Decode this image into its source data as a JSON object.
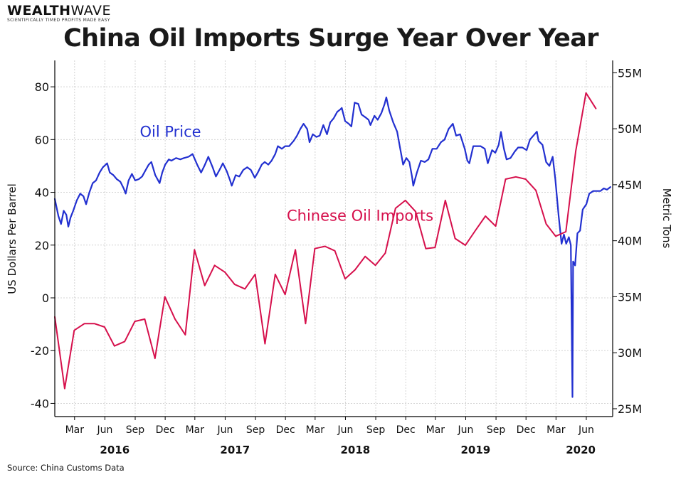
{
  "brand": {
    "name_bold": "WEALTH",
    "name_light": "WAVE",
    "tagline": "SCIENTIFICALLY TIMED PROFITS MADE EASY"
  },
  "source": "Source: China Customs Data",
  "colors": {
    "oil_price": "#2230d0",
    "imports": "#d6104c",
    "grid": "#d4d4d4",
    "axis": "#000000"
  },
  "chart_data": {
    "type": "line",
    "title": "China Oil Imports Surge Year Over Year",
    "left_axis": {
      "label": "US Dollars Per Barrel",
      "range": [
        -45,
        90
      ],
      "ticks": [
        80,
        60,
        40,
        20,
        0,
        -20,
        -40
      ],
      "tick_labels": [
        "80",
        "60",
        "40",
        "20",
        "0",
        "-20",
        "-40"
      ]
    },
    "right_axis": {
      "label": "Metric Tons",
      "range": [
        24.3,
        56.1
      ],
      "ticks": [
        55,
        50,
        45,
        40,
        35,
        30,
        25
      ],
      "tick_labels": [
        "55M",
        "50M",
        "45M",
        "40M",
        "35M",
        "30M",
        "25M"
      ]
    },
    "x_axis": {
      "range": [
        "2016-01-01",
        "2020-08-20"
      ],
      "month_ticks": [
        {
          "date": "2016-03-01",
          "label": "Mar"
        },
        {
          "date": "2016-06-01",
          "label": "Jun"
        },
        {
          "date": "2016-09-01",
          "label": "Sep"
        },
        {
          "date": "2016-12-01",
          "label": "Dec"
        },
        {
          "date": "2017-03-01",
          "label": "Mar"
        },
        {
          "date": "2017-06-01",
          "label": "Jun"
        },
        {
          "date": "2017-09-01",
          "label": "Sep"
        },
        {
          "date": "2017-12-01",
          "label": "Dec"
        },
        {
          "date": "2018-03-01",
          "label": "Mar"
        },
        {
          "date": "2018-06-01",
          "label": "Jun"
        },
        {
          "date": "2018-09-01",
          "label": "Sep"
        },
        {
          "date": "2018-12-01",
          "label": "Dec"
        },
        {
          "date": "2019-03-01",
          "label": "Mar"
        },
        {
          "date": "2019-06-01",
          "label": "Jun"
        },
        {
          "date": "2019-09-01",
          "label": "Sep"
        },
        {
          "date": "2019-12-01",
          "label": "Dec"
        },
        {
          "date": "2020-03-01",
          "label": "Mar"
        },
        {
          "date": "2020-06-01",
          "label": "Jun"
        }
      ],
      "year_labels": [
        {
          "date": "2016-07-01",
          "label": "2016"
        },
        {
          "date": "2017-07-01",
          "label": "2017"
        },
        {
          "date": "2018-07-01",
          "label": "2018"
        },
        {
          "date": "2019-07-01",
          "label": "2019"
        },
        {
          "date": "2020-05-15",
          "label": "2020"
        }
      ]
    },
    "grid": true,
    "series": [
      {
        "name": "Oil Price",
        "axis": "left",
        "color": "#2230d0",
        "label_position": {
          "date": "2016-09-15",
          "value": 61
        },
        "points": [
          [
            "2016-01-01",
            37.5
          ],
          [
            "2016-01-12",
            31.0
          ],
          [
            "2016-01-20",
            28.0
          ],
          [
            "2016-01-28",
            33.0
          ],
          [
            "2016-02-05",
            31.5
          ],
          [
            "2016-02-11",
            27.0
          ],
          [
            "2016-02-18",
            30.5
          ],
          [
            "2016-02-26",
            33.0
          ],
          [
            "2016-03-08",
            37.0
          ],
          [
            "2016-03-18",
            39.5
          ],
          [
            "2016-03-28",
            38.5
          ],
          [
            "2016-04-05",
            35.5
          ],
          [
            "2016-04-15",
            40.0
          ],
          [
            "2016-04-25",
            43.5
          ],
          [
            "2016-05-05",
            44.5
          ],
          [
            "2016-05-16",
            47.5
          ],
          [
            "2016-05-26",
            49.5
          ],
          [
            "2016-06-08",
            51.0
          ],
          [
            "2016-06-16",
            47.5
          ],
          [
            "2016-06-27",
            46.5
          ],
          [
            "2016-07-07",
            45.0
          ],
          [
            "2016-07-18",
            44.0
          ],
          [
            "2016-07-28",
            41.5
          ],
          [
            "2016-08-03",
            39.5
          ],
          [
            "2016-08-12",
            44.5
          ],
          [
            "2016-08-22",
            47.0
          ],
          [
            "2016-09-01",
            44.5
          ],
          [
            "2016-09-12",
            45.0
          ],
          [
            "2016-09-22",
            46.0
          ],
          [
            "2016-10-03",
            48.5
          ],
          [
            "2016-10-12",
            50.5
          ],
          [
            "2016-10-20",
            51.5
          ],
          [
            "2016-11-01",
            46.5
          ],
          [
            "2016-11-14",
            43.5
          ],
          [
            "2016-11-22",
            47.5
          ],
          [
            "2016-12-01",
            50.5
          ],
          [
            "2016-12-12",
            52.5
          ],
          [
            "2016-12-20",
            52.0
          ],
          [
            "2017-01-03",
            53.0
          ],
          [
            "2017-01-16",
            52.5
          ],
          [
            "2017-01-27",
            53.0
          ],
          [
            "2017-02-10",
            53.5
          ],
          [
            "2017-02-22",
            54.5
          ],
          [
            "2017-03-08",
            50.5
          ],
          [
            "2017-03-20",
            47.5
          ],
          [
            "2017-03-30",
            50.0
          ],
          [
            "2017-04-11",
            53.5
          ],
          [
            "2017-04-24",
            49.5
          ],
          [
            "2017-05-04",
            46.0
          ],
          [
            "2017-05-15",
            48.5
          ],
          [
            "2017-05-25",
            51.0
          ],
          [
            "2017-06-06",
            48.0
          ],
          [
            "2017-06-16",
            44.5
          ],
          [
            "2017-06-21",
            42.5
          ],
          [
            "2017-07-03",
            46.5
          ],
          [
            "2017-07-14",
            46.0
          ],
          [
            "2017-07-26",
            48.5
          ],
          [
            "2017-08-07",
            49.5
          ],
          [
            "2017-08-18",
            48.5
          ],
          [
            "2017-08-30",
            45.5
          ],
          [
            "2017-09-08",
            47.5
          ],
          [
            "2017-09-20",
            50.5
          ],
          [
            "2017-09-29",
            51.5
          ],
          [
            "2017-10-10",
            50.5
          ],
          [
            "2017-10-20",
            52.0
          ],
          [
            "2017-10-31",
            54.5
          ],
          [
            "2017-11-08",
            57.5
          ],
          [
            "2017-11-20",
            56.5
          ],
          [
            "2017-11-30",
            57.5
          ],
          [
            "2017-12-12",
            57.5
          ],
          [
            "2017-12-26",
            59.5
          ],
          [
            "2018-01-05",
            61.5
          ],
          [
            "2018-01-15",
            64.0
          ],
          [
            "2018-01-25",
            66.0
          ],
          [
            "2018-02-05",
            64.0
          ],
          [
            "2018-02-12",
            59.0
          ],
          [
            "2018-02-22",
            62.0
          ],
          [
            "2018-03-05",
            61.0
          ],
          [
            "2018-03-15",
            61.5
          ],
          [
            "2018-03-26",
            65.5
          ],
          [
            "2018-04-06",
            62.0
          ],
          [
            "2018-04-16",
            66.5
          ],
          [
            "2018-04-26",
            68.0
          ],
          [
            "2018-05-07",
            70.5
          ],
          [
            "2018-05-17",
            71.5
          ],
          [
            "2018-05-21",
            72.0
          ],
          [
            "2018-05-31",
            67.0
          ],
          [
            "2018-06-11",
            66.0
          ],
          [
            "2018-06-19",
            65.0
          ],
          [
            "2018-06-29",
            74.0
          ],
          [
            "2018-07-10",
            73.5
          ],
          [
            "2018-07-20",
            69.5
          ],
          [
            "2018-07-31",
            68.5
          ],
          [
            "2018-08-10",
            67.5
          ],
          [
            "2018-08-16",
            65.5
          ],
          [
            "2018-08-28",
            69.0
          ],
          [
            "2018-09-07",
            67.5
          ],
          [
            "2018-09-18",
            70.0
          ],
          [
            "2018-09-28",
            73.5
          ],
          [
            "2018-10-03",
            76.0
          ],
          [
            "2018-10-12",
            71.0
          ],
          [
            "2018-10-24",
            66.5
          ],
          [
            "2018-11-05",
            63.0
          ],
          [
            "2018-11-15",
            56.0
          ],
          [
            "2018-11-23",
            50.5
          ],
          [
            "2018-12-03",
            53.0
          ],
          [
            "2018-12-12",
            51.5
          ],
          [
            "2018-12-20",
            46.0
          ],
          [
            "2018-12-24",
            42.5
          ],
          [
            "2019-01-04",
            47.5
          ],
          [
            "2019-01-16",
            52.0
          ],
          [
            "2019-01-28",
            51.5
          ],
          [
            "2019-02-08",
            52.5
          ],
          [
            "2019-02-20",
            56.5
          ],
          [
            "2019-03-05",
            56.5
          ],
          [
            "2019-03-18",
            59.0
          ],
          [
            "2019-03-29",
            60.0
          ],
          [
            "2019-04-10",
            64.0
          ],
          [
            "2019-04-23",
            66.0
          ],
          [
            "2019-05-03",
            61.5
          ],
          [
            "2019-05-15",
            62.0
          ],
          [
            "2019-05-29",
            56.5
          ],
          [
            "2019-06-06",
            52.0
          ],
          [
            "2019-06-12",
            51.0
          ],
          [
            "2019-06-24",
            57.5
          ],
          [
            "2019-07-05",
            57.5
          ],
          [
            "2019-07-16",
            57.5
          ],
          [
            "2019-07-29",
            56.5
          ],
          [
            "2019-08-07",
            51.0
          ],
          [
            "2019-08-20",
            56.0
          ],
          [
            "2019-08-30",
            55.0
          ],
          [
            "2019-09-09",
            58.0
          ],
          [
            "2019-09-16",
            62.9
          ],
          [
            "2019-09-25",
            56.5
          ],
          [
            "2019-10-03",
            52.5
          ],
          [
            "2019-10-15",
            53.0
          ],
          [
            "2019-10-28",
            55.5
          ],
          [
            "2019-11-07",
            57.0
          ],
          [
            "2019-11-20",
            57.0
          ],
          [
            "2019-12-03",
            56.0
          ],
          [
            "2019-12-13",
            60.0
          ],
          [
            "2020-01-03",
            63.0
          ],
          [
            "2020-01-08",
            59.5
          ],
          [
            "2020-01-20",
            58.0
          ],
          [
            "2020-01-31",
            51.5
          ],
          [
            "2020-02-10",
            50.0
          ],
          [
            "2020-02-20",
            53.5
          ],
          [
            "2020-02-28",
            45.0
          ],
          [
            "2020-03-09",
            31.0
          ],
          [
            "2020-03-18",
            20.5
          ],
          [
            "2020-03-25",
            24.0
          ],
          [
            "2020-04-01",
            20.5
          ],
          [
            "2020-04-09",
            23.0
          ],
          [
            "2020-04-15",
            20.0
          ],
          [
            "2020-04-20",
            -37.6
          ],
          [
            "2020-04-22",
            13.8
          ],
          [
            "2020-04-28",
            12.3
          ],
          [
            "2020-05-05",
            24.5
          ],
          [
            "2020-05-13",
            25.5
          ],
          [
            "2020-05-21",
            33.5
          ],
          [
            "2020-06-01",
            35.5
          ],
          [
            "2020-06-10",
            39.5
          ],
          [
            "2020-06-22",
            40.5
          ],
          [
            "2020-07-02",
            40.5
          ],
          [
            "2020-07-14",
            40.5
          ],
          [
            "2020-07-24",
            41.5
          ],
          [
            "2020-08-03",
            41.0
          ],
          [
            "2020-08-13",
            42.0
          ]
        ]
      },
      {
        "name": "Chinese Oil Imports",
        "axis": "right",
        "color": "#d6104c",
        "label_position": {
          "date": "2017-12-05",
          "value": 41.8
        },
        "points": [
          [
            "2016-01-01",
            33.2
          ],
          [
            "2016-01-31",
            26.8
          ],
          [
            "2016-02-29",
            32.0
          ],
          [
            "2016-03-31",
            32.6
          ],
          [
            "2016-04-30",
            32.6
          ],
          [
            "2016-05-31",
            32.3
          ],
          [
            "2016-06-30",
            30.6
          ],
          [
            "2016-07-31",
            31.0
          ],
          [
            "2016-08-31",
            32.8
          ],
          [
            "2016-09-30",
            33.0
          ],
          [
            "2016-10-31",
            29.5
          ],
          [
            "2016-11-30",
            35.0
          ],
          [
            "2016-12-31",
            33.0
          ],
          [
            "2017-01-31",
            31.6
          ],
          [
            "2017-02-28",
            39.2
          ],
          [
            "2017-03-31",
            36.0
          ],
          [
            "2017-04-30",
            37.8
          ],
          [
            "2017-05-31",
            37.2
          ],
          [
            "2017-06-30",
            36.1
          ],
          [
            "2017-07-31",
            35.7
          ],
          [
            "2017-08-31",
            37.0
          ],
          [
            "2017-09-30",
            30.8
          ],
          [
            "2017-10-31",
            37.0
          ],
          [
            "2017-11-30",
            35.2
          ],
          [
            "2017-12-31",
            39.2
          ],
          [
            "2018-01-31",
            32.6
          ],
          [
            "2018-02-28",
            39.3
          ],
          [
            "2018-03-31",
            39.5
          ],
          [
            "2018-04-30",
            39.1
          ],
          [
            "2018-05-31",
            36.6
          ],
          [
            "2018-06-30",
            37.4
          ],
          [
            "2018-07-31",
            38.6
          ],
          [
            "2018-08-31",
            37.8
          ],
          [
            "2018-09-30",
            38.9
          ],
          [
            "2018-10-31",
            42.9
          ],
          [
            "2018-11-30",
            43.6
          ],
          [
            "2018-12-31",
            42.6
          ],
          [
            "2019-01-31",
            39.3
          ],
          [
            "2019-02-28",
            39.4
          ],
          [
            "2019-03-31",
            43.6
          ],
          [
            "2019-04-30",
            40.2
          ],
          [
            "2019-05-31",
            39.6
          ],
          [
            "2019-06-30",
            40.9
          ],
          [
            "2019-07-31",
            42.2
          ],
          [
            "2019-08-31",
            41.3
          ],
          [
            "2019-09-30",
            45.5
          ],
          [
            "2019-10-31",
            45.7
          ],
          [
            "2019-11-30",
            45.5
          ],
          [
            "2019-12-31",
            44.5
          ],
          [
            "2020-01-31",
            41.5
          ],
          [
            "2020-02-29",
            40.4
          ],
          [
            "2020-03-31",
            40.8
          ],
          [
            "2020-04-30",
            48.0
          ],
          [
            "2020-05-31",
            53.2
          ],
          [
            "2020-06-30",
            51.8
          ]
        ]
      }
    ]
  }
}
